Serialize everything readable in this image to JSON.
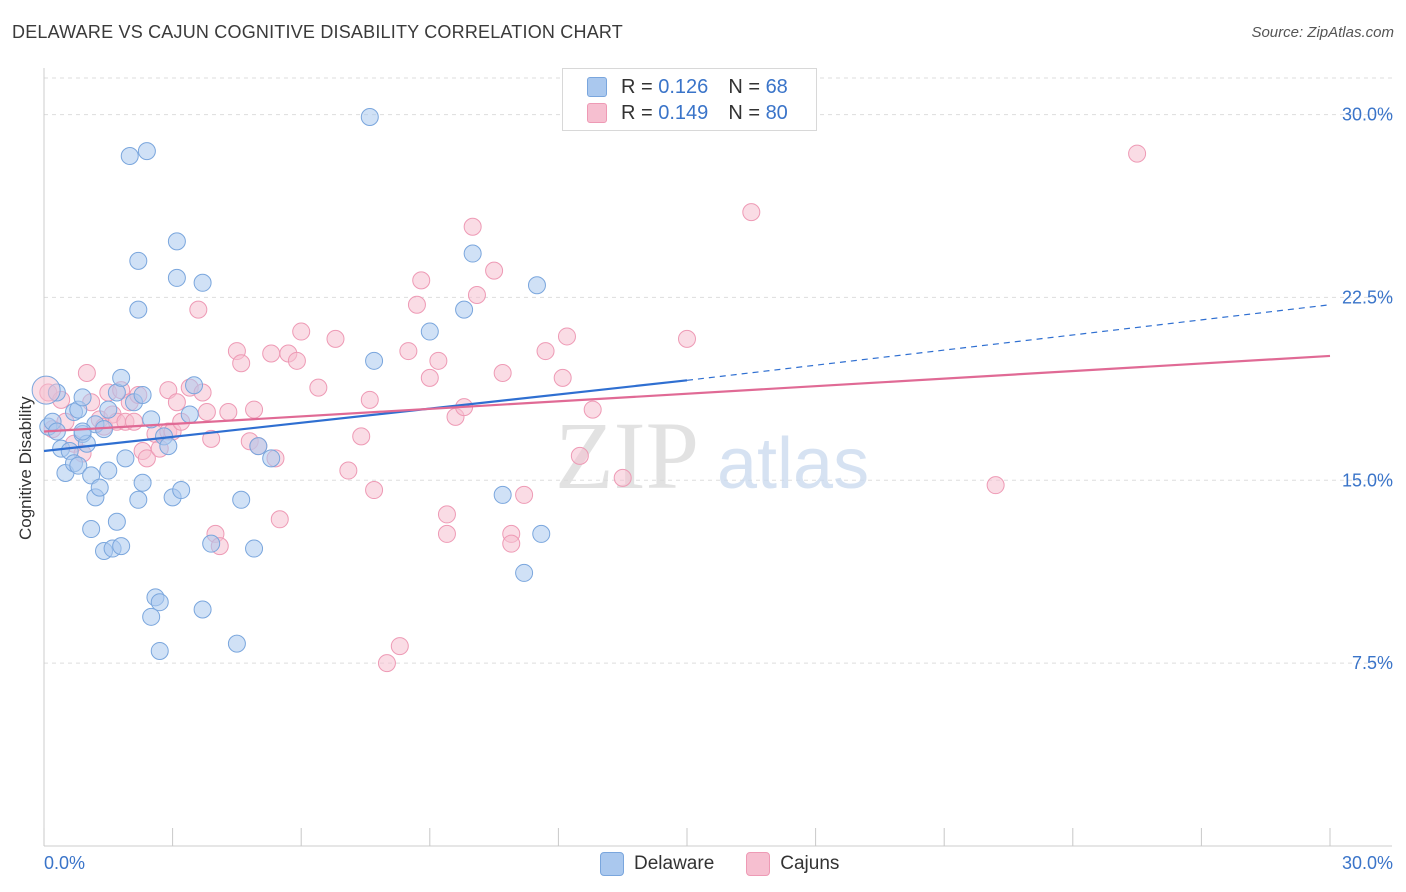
{
  "header": {
    "title": "DELAWARE VS CAJUN COGNITIVE DISABILITY CORRELATION CHART",
    "source": "Source: ZipAtlas.com"
  },
  "colors": {
    "delaware_fill": "#aac8ee",
    "delaware_stroke": "#7aa6dd",
    "delaware_line": "#2f6fd1",
    "cajuns_fill": "#f6bfd0",
    "cajuns_stroke": "#ee9ab5",
    "cajuns_line": "#e06a95",
    "tick_label": "#3a74c9",
    "grid": "#dddddd"
  },
  "legend": {
    "delaware": {
      "r_label": "R =",
      "r_value": "0.126",
      "n_label": "N =",
      "n_value": "68"
    },
    "cajuns": {
      "r_label": "R =",
      "r_value": "0.149",
      "n_label": "N =",
      "n_value": "80"
    }
  },
  "watermark": {
    "zip": "ZIP",
    "atlas": "atlas"
  },
  "chart_data": {
    "type": "scatter",
    "title": "DELAWARE VS CAJUN COGNITIVE DISABILITY CORRELATION CHART",
    "xlabel": "",
    "ylabel": "Cognitive Disability",
    "xlim": [
      0,
      30
    ],
    "ylim": [
      0,
      31.5
    ],
    "x_tick_labels": [
      "0.0%",
      "30.0%"
    ],
    "y_ticks": [
      7.5,
      15.0,
      22.5,
      30.0
    ],
    "y_tick_labels": [
      "7.5%",
      "15.0%",
      "22.5%",
      "30.0%"
    ],
    "grid": true,
    "legend_position": "top-center",
    "series": [
      {
        "name": "Delaware",
        "r": 0.126,
        "n": 68,
        "trend": {
          "x0": 0.0,
          "y0": 16.2,
          "x1": 15.0,
          "y1": 19.1,
          "dashed_x1": 30.0,
          "dashed_y1": 22.2
        },
        "points": [
          [
            0.1,
            17.2
          ],
          [
            0.2,
            17.4
          ],
          [
            0.3,
            17.0
          ],
          [
            0.4,
            16.3
          ],
          [
            0.5,
            15.3
          ],
          [
            0.6,
            16.2
          ],
          [
            0.7,
            17.8
          ],
          [
            0.7,
            15.7
          ],
          [
            0.8,
            15.6
          ],
          [
            0.8,
            17.9
          ],
          [
            0.9,
            18.4
          ],
          [
            0.9,
            16.9
          ],
          [
            1.0,
            16.5
          ],
          [
            1.1,
            13.0
          ],
          [
            1.1,
            15.2
          ],
          [
            1.2,
            14.3
          ],
          [
            1.2,
            17.3
          ],
          [
            1.3,
            14.7
          ],
          [
            1.4,
            17.1
          ],
          [
            1.4,
            12.1
          ],
          [
            1.5,
            17.9
          ],
          [
            1.5,
            15.4
          ],
          [
            1.6,
            12.2
          ],
          [
            1.7,
            18.6
          ],
          [
            1.7,
            13.3
          ],
          [
            1.8,
            12.3
          ],
          [
            1.8,
            19.2
          ],
          [
            1.9,
            15.9
          ],
          [
            2.0,
            28.3
          ],
          [
            2.1,
            18.2
          ],
          [
            2.2,
            24.0
          ],
          [
            2.2,
            22.0
          ],
          [
            2.2,
            14.2
          ],
          [
            2.3,
            18.5
          ],
          [
            2.3,
            14.9
          ],
          [
            2.4,
            28.5
          ],
          [
            2.5,
            17.5
          ],
          [
            2.6,
            10.2
          ],
          [
            2.7,
            10.0
          ],
          [
            2.7,
            8.0
          ],
          [
            2.5,
            9.4
          ],
          [
            2.8,
            16.8
          ],
          [
            2.9,
            16.4
          ],
          [
            3.0,
            14.3
          ],
          [
            3.1,
            24.8
          ],
          [
            3.1,
            23.3
          ],
          [
            3.2,
            14.6
          ],
          [
            3.4,
            17.7
          ],
          [
            3.5,
            18.9
          ],
          [
            3.7,
            9.7
          ],
          [
            3.7,
            23.1
          ],
          [
            3.9,
            12.4
          ],
          [
            4.5,
            8.3
          ],
          [
            4.6,
            14.2
          ],
          [
            4.9,
            12.2
          ],
          [
            5.0,
            16.4
          ],
          [
            5.3,
            15.9
          ],
          [
            7.6,
            29.9
          ],
          [
            7.7,
            19.9
          ],
          [
            9.0,
            21.1
          ],
          [
            9.8,
            22.0
          ],
          [
            10.0,
            24.3
          ],
          [
            10.7,
            14.4
          ],
          [
            11.2,
            11.2
          ],
          [
            11.5,
            23.0
          ],
          [
            11.6,
            12.8
          ],
          [
            0.3,
            18.6
          ],
          [
            0.9,
            17.0
          ]
        ]
      },
      {
        "name": "Cajuns",
        "r": 0.149,
        "n": 80,
        "trend": {
          "x0": 0.0,
          "y0": 17.0,
          "x1": 30.0,
          "y1": 20.1
        },
        "points": [
          [
            0.1,
            18.6
          ],
          [
            0.2,
            17.1
          ],
          [
            0.4,
            18.3
          ],
          [
            0.5,
            17.4
          ],
          [
            0.7,
            16.5
          ],
          [
            0.9,
            16.1
          ],
          [
            1.0,
            19.4
          ],
          [
            1.1,
            18.2
          ],
          [
            1.3,
            17.5
          ],
          [
            1.4,
            17.2
          ],
          [
            1.5,
            18.6
          ],
          [
            1.6,
            17.7
          ],
          [
            1.7,
            17.4
          ],
          [
            1.8,
            18.7
          ],
          [
            1.9,
            17.4
          ],
          [
            2.0,
            18.2
          ],
          [
            2.1,
            17.4
          ],
          [
            2.2,
            18.5
          ],
          [
            2.3,
            16.2
          ],
          [
            2.4,
            15.9
          ],
          [
            2.6,
            16.9
          ],
          [
            2.7,
            16.3
          ],
          [
            2.9,
            17.0
          ],
          [
            2.9,
            18.7
          ],
          [
            3.0,
            17.0
          ],
          [
            3.1,
            18.2
          ],
          [
            3.2,
            17.4
          ],
          [
            3.4,
            18.8
          ],
          [
            3.6,
            22.0
          ],
          [
            3.7,
            18.6
          ],
          [
            3.8,
            17.8
          ],
          [
            3.9,
            16.7
          ],
          [
            4.0,
            12.8
          ],
          [
            4.1,
            12.3
          ],
          [
            4.3,
            17.8
          ],
          [
            4.5,
            20.3
          ],
          [
            4.6,
            19.8
          ],
          [
            4.8,
            16.6
          ],
          [
            4.9,
            17.9
          ],
          [
            5.0,
            16.4
          ],
          [
            5.3,
            20.2
          ],
          [
            5.4,
            15.9
          ],
          [
            5.5,
            13.4
          ],
          [
            5.7,
            20.2
          ],
          [
            5.9,
            19.9
          ],
          [
            6.0,
            21.1
          ],
          [
            6.4,
            18.8
          ],
          [
            6.8,
            20.8
          ],
          [
            7.1,
            15.4
          ],
          [
            7.4,
            16.8
          ],
          [
            7.6,
            18.3
          ],
          [
            7.7,
            14.6
          ],
          [
            8.0,
            7.5
          ],
          [
            8.3,
            8.2
          ],
          [
            8.5,
            20.3
          ],
          [
            8.7,
            22.2
          ],
          [
            8.8,
            23.2
          ],
          [
            9.0,
            19.2
          ],
          [
            9.2,
            19.9
          ],
          [
            9.4,
            13.6
          ],
          [
            9.4,
            12.8
          ],
          [
            9.6,
            17.6
          ],
          [
            9.8,
            18.0
          ],
          [
            10.0,
            25.4
          ],
          [
            10.1,
            22.6
          ],
          [
            10.5,
            23.6
          ],
          [
            10.7,
            19.4
          ],
          [
            10.9,
            12.8
          ],
          [
            10.9,
            12.4
          ],
          [
            11.2,
            14.4
          ],
          [
            11.7,
            20.3
          ],
          [
            12.1,
            19.2
          ],
          [
            12.2,
            20.9
          ],
          [
            12.5,
            16.0
          ],
          [
            12.8,
            17.9
          ],
          [
            13.5,
            15.1
          ],
          [
            15.0,
            20.8
          ],
          [
            16.5,
            26.0
          ],
          [
            22.2,
            14.8
          ],
          [
            25.5,
            28.4
          ]
        ]
      }
    ]
  },
  "bottom_legend": {
    "delaware": "Delaware",
    "cajuns": "Cajuns"
  }
}
